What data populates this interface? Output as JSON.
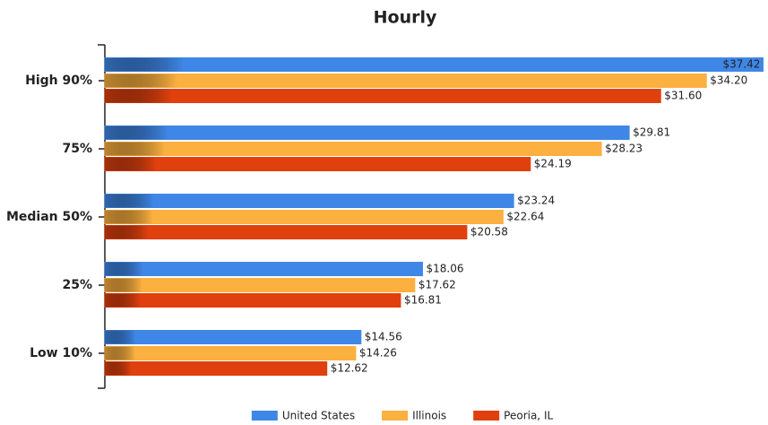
{
  "chart_data": {
    "type": "barh",
    "title": "Hourly",
    "categories": [
      "High 90%",
      "75%",
      "Median 50%",
      "25%",
      "Low 10%"
    ],
    "series": [
      {
        "name": "United States",
        "color": "#3f87e6",
        "values": [
          37.42,
          29.81,
          23.24,
          18.06,
          14.56
        ],
        "value_labels": [
          "$37.42",
          "$29.81",
          "$23.24",
          "$18.06",
          "$14.56"
        ]
      },
      {
        "name": "Illinois",
        "color": "#fbb040",
        "values": [
          34.2,
          28.23,
          22.64,
          17.62,
          14.26
        ],
        "value_labels": [
          "$34.20",
          "$28.23",
          "$22.64",
          "$17.62",
          "$14.26"
        ]
      },
      {
        "name": "Peoria, IL",
        "color": "#e0400e",
        "values": [
          31.6,
          24.19,
          20.58,
          16.81,
          12.62
        ],
        "value_labels": [
          "$31.60",
          "$24.19",
          "$20.58",
          "$16.81",
          "$12.62"
        ]
      }
    ],
    "xlim": [
      0,
      37.6
    ],
    "legend": "bottom"
  }
}
